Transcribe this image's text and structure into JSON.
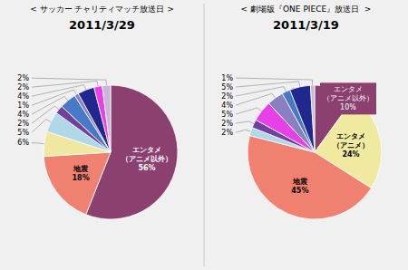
{
  "chart_data": [
    {
      "type": "pie",
      "title": "2011/3/29",
      "subtitle": "< サッカー チャリティマッチ放送日 >",
      "categories": [
        "エンタメ\n（アニメ以外）",
        "地震",
        null,
        null,
        null,
        null,
        null,
        null,
        null,
        null
      ],
      "values": [
        56,
        18,
        6,
        5,
        2,
        4,
        1,
        4,
        2,
        2
      ],
      "value_labels": [
        "56%",
        "18%",
        "6%",
        "5%",
        "2%",
        "4%",
        "1%",
        "4%",
        "2%",
        "2%"
      ],
      "colors": [
        "#8B4070",
        "#F08070",
        "#F0E8A0",
        "#B0D8E8",
        "#7040A0",
        "#4878C8",
        "#8880C0",
        "#202890",
        "#E840E8",
        "#C8B8D8"
      ],
      "data_labels": true
    },
    {
      "type": "pie",
      "title": "2011/3/19",
      "subtitle": "< 劇場版『ONE PIECE』放送日  >",
      "categories": [
        "エンタメ\n（アニメ以外）",
        "エンタメ\n（アニメ）",
        "地震",
        null,
        null,
        null,
        null,
        null,
        null,
        null
      ],
      "values": [
        10,
        24,
        45,
        2,
        2,
        5,
        4,
        2,
        5,
        1
      ],
      "value_labels": [
        "10%",
        "24%",
        "45%",
        "2%",
        "2%",
        "5%",
        "4%",
        "2%",
        "5%",
        "1%"
      ],
      "colors": [
        "#8B4070",
        "#F0EAA0",
        "#F08070",
        "#B0D8E8",
        "#7040A0",
        "#E840E8",
        "#8880C0",
        "#4878C8",
        "#202890",
        "#C8B8D8"
      ],
      "data_labels": true
    }
  ]
}
